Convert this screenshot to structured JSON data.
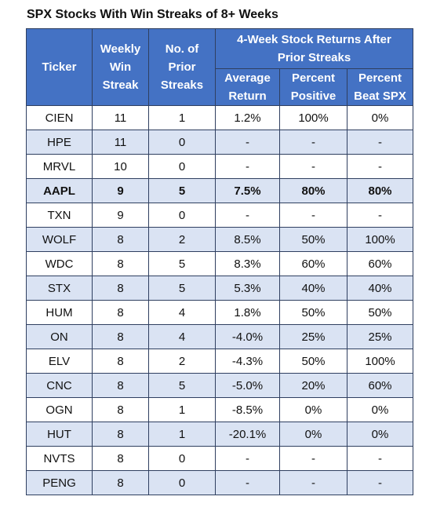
{
  "header": {
    "title": "SPX Stocks With Win Streaks of 8+ Weeks"
  },
  "table": {
    "columns": [
      "Ticker",
      "Weekly Win Streak",
      "No. of Prior Streaks"
    ],
    "group_header": "4-Week Stock Returns After Prior Streaks",
    "subcolumns": [
      "Average Return",
      "Percent Positive",
      "Percent Beat SPX"
    ],
    "rows": [
      [
        "CIEN",
        "11",
        "1",
        "1.2%",
        "100%",
        "0%"
      ],
      [
        "HPE",
        "11",
        "0",
        "-",
        "-",
        "-"
      ],
      [
        "MRVL",
        "10",
        "0",
        "-",
        "-",
        "-"
      ],
      [
        "AAPL",
        "9",
        "5",
        "7.5%",
        "80%",
        "80%"
      ],
      [
        "TXN",
        "9",
        "0",
        "-",
        "-",
        "-"
      ],
      [
        "WOLF",
        "8",
        "2",
        "8.5%",
        "50%",
        "100%"
      ],
      [
        "WDC",
        "8",
        "5",
        "8.3%",
        "60%",
        "60%"
      ],
      [
        "STX",
        "8",
        "5",
        "5.3%",
        "40%",
        "40%"
      ],
      [
        "HUM",
        "8",
        "4",
        "1.8%",
        "50%",
        "50%"
      ],
      [
        "ON",
        "8",
        "4",
        "-4.0%",
        "25%",
        "25%"
      ],
      [
        "ELV",
        "8",
        "2",
        "-4.3%",
        "50%",
        "100%"
      ],
      [
        "CNC",
        "8",
        "5",
        "-5.0%",
        "20%",
        "60%"
      ],
      [
        "OGN",
        "8",
        "1",
        "-8.5%",
        "0%",
        "0%"
      ],
      [
        "HUT",
        "8",
        "1",
        "-20.1%",
        "0%",
        "0%"
      ],
      [
        "NVTS",
        "8",
        "0",
        "-",
        "-",
        "-"
      ],
      [
        "PENG",
        "8",
        "0",
        "-",
        "-",
        "-"
      ]
    ]
  }
}
